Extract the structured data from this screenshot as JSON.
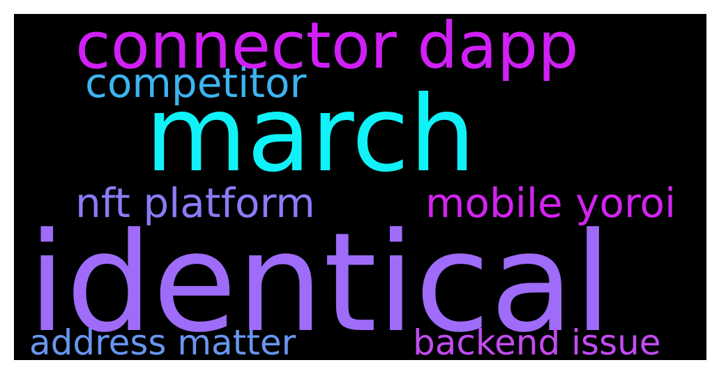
{
  "wordcloud": {
    "background": "#000000",
    "words": [
      {
        "id": "connector-dapp",
        "text": "connector dapp",
        "color": "#d020f5"
      },
      {
        "id": "competitor",
        "text": "competitor",
        "color": "#3db4f0"
      },
      {
        "id": "march",
        "text": "march",
        "color": "#10f2f7"
      },
      {
        "id": "nft-platform",
        "text": "nft platform",
        "color": "#8a7cf5"
      },
      {
        "id": "mobile-yoroi",
        "text": "mobile yoroi",
        "color": "#d224f0"
      },
      {
        "id": "identical",
        "text": "identical",
        "color": "#9e6cf8"
      },
      {
        "id": "address-matter",
        "text": "address matter",
        "color": "#6896f0"
      },
      {
        "id": "backend-issue",
        "text": "backend issue",
        "color": "#c24cf0"
      }
    ]
  }
}
